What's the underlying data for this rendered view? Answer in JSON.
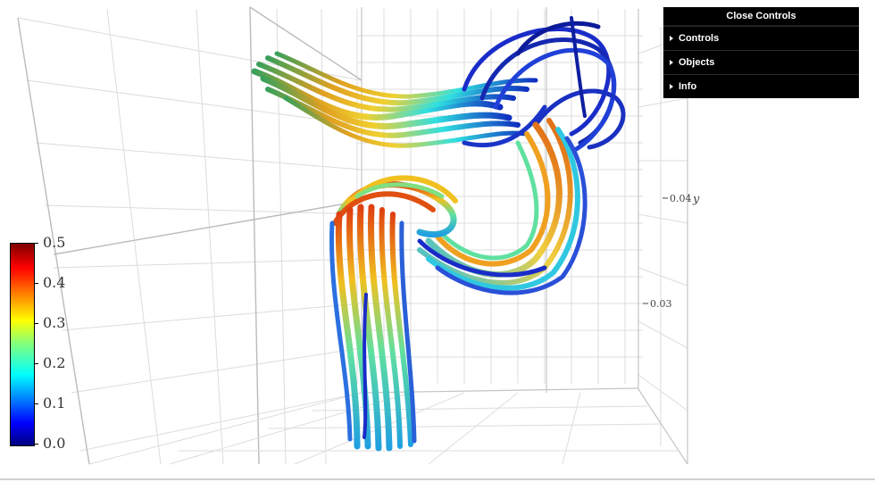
{
  "viewer": {
    "axis_ticks": [
      {
        "label": "0.04",
        "var": "y"
      },
      {
        "label": "0.03",
        "var": ""
      }
    ]
  },
  "colorbar": {
    "colormap": "jet",
    "labels": [
      "0.5",
      "0.4",
      "0.3",
      "0.2",
      "0.1",
      "0.0"
    ]
  },
  "gui": {
    "close_label": "Close Controls",
    "folders": [
      "Controls",
      "Objects",
      "Info"
    ]
  },
  "colors": {
    "panel_bg": "#000000",
    "grid": "#d8d8d8",
    "grid_major": "#bbbbbb"
  }
}
